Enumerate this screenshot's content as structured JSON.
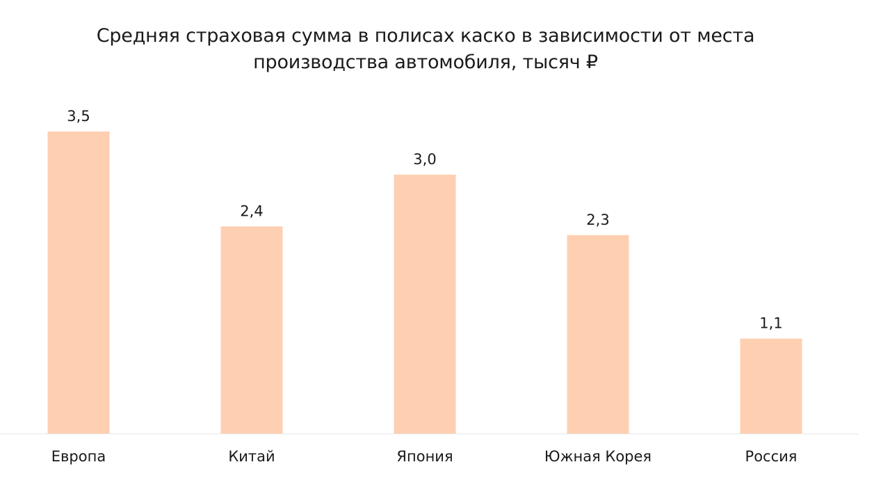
{
  "chart_data": {
    "type": "bar",
    "title_lines": [
      "Средняя страховая сумма в полисах каско в зависимости от места",
      "производства автомобиля, тысяч ₽"
    ],
    "categories": [
      "Европа",
      "Китай",
      "Япония",
      "Южная Корея",
      "Россия"
    ],
    "values": [
      3.5,
      2.4,
      3.0,
      2.3,
      1.1
    ],
    "value_labels": [
      "3,5",
      "2,4",
      "3,0",
      "2,3",
      "1,1"
    ],
    "bar_color": "#ffcfb2",
    "axis_color": "#e6e6e6",
    "ylim": [
      0,
      3.5
    ],
    "grid": false,
    "legend": "none"
  }
}
